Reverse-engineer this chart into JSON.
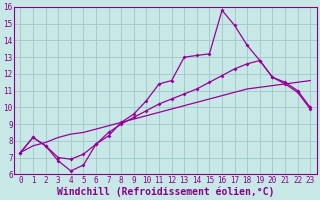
{
  "xlabel": "Windchill (Refroidissement éolien,°C)",
  "xlim": [
    -0.5,
    23.5
  ],
  "ylim": [
    6,
    16
  ],
  "xticks": [
    0,
    1,
    2,
    3,
    4,
    5,
    6,
    7,
    8,
    9,
    10,
    11,
    12,
    13,
    14,
    15,
    16,
    17,
    18,
    19,
    20,
    21,
    22,
    23
  ],
  "yticks": [
    6,
    7,
    8,
    9,
    10,
    11,
    12,
    13,
    14,
    15,
    16
  ],
  "bg_color": "#c8e8e8",
  "grid_color": "#a0c8c8",
  "line_color": "#990099",
  "line1_x": [
    0,
    1,
    2,
    3,
    4,
    5,
    6,
    7,
    8,
    9,
    10,
    11,
    12,
    13,
    14,
    15,
    16,
    17,
    18,
    19,
    20,
    21,
    22,
    23
  ],
  "line1_y": [
    7.3,
    8.2,
    7.7,
    6.8,
    6.2,
    6.55,
    7.8,
    8.3,
    9.1,
    9.6,
    10.4,
    11.4,
    11.6,
    13.0,
    13.1,
    13.2,
    15.8,
    14.9,
    13.7,
    12.8,
    11.8,
    11.4,
    10.9,
    9.9
  ],
  "line2_x": [
    0,
    1,
    2,
    3,
    4,
    5,
    6,
    7,
    8,
    9,
    10,
    11,
    12,
    13,
    14,
    15,
    16,
    17,
    18,
    19,
    20,
    21,
    22,
    23
  ],
  "line2_y": [
    7.3,
    8.2,
    7.7,
    7.0,
    6.9,
    7.2,
    7.8,
    8.5,
    9.0,
    9.4,
    9.8,
    10.2,
    10.5,
    10.8,
    11.1,
    11.5,
    11.9,
    12.3,
    12.6,
    12.8,
    11.8,
    11.5,
    11.0,
    10.0
  ],
  "line3_x": [
    0,
    1,
    2,
    3,
    4,
    5,
    6,
    7,
    8,
    9,
    10,
    11,
    12,
    13,
    14,
    15,
    16,
    17,
    18,
    19,
    20,
    21,
    22,
    23
  ],
  "line3_y": [
    7.3,
    7.7,
    7.9,
    8.2,
    8.4,
    8.5,
    8.7,
    8.9,
    9.1,
    9.3,
    9.5,
    9.7,
    9.9,
    10.1,
    10.3,
    10.5,
    10.7,
    10.9,
    11.1,
    11.2,
    11.3,
    11.4,
    11.5,
    11.6
  ],
  "font_color": "#880088",
  "tick_fontsize": 5.5,
  "label_fontsize": 7.0
}
